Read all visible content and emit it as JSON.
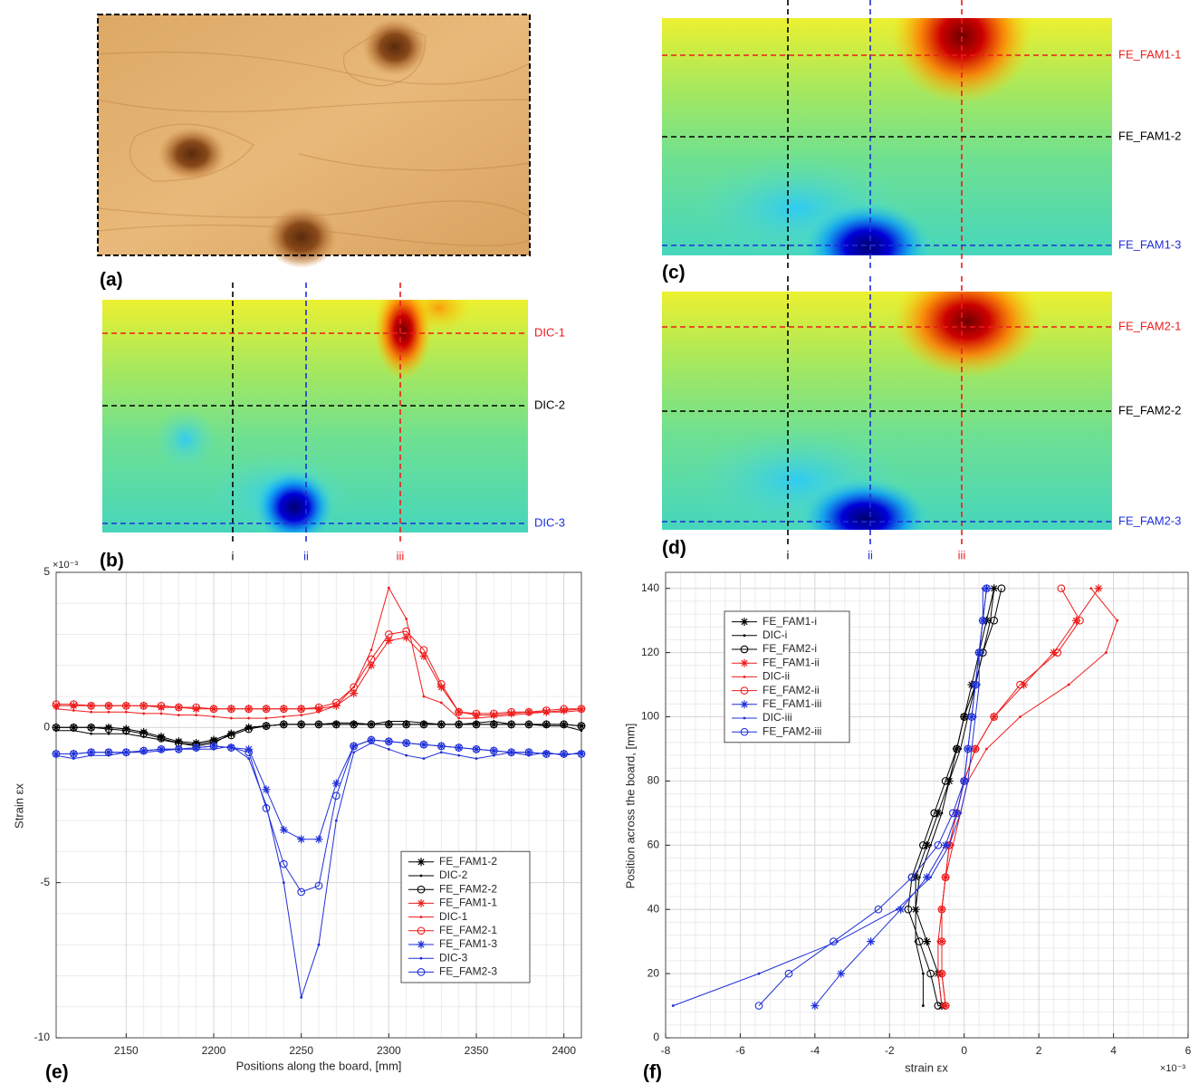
{
  "panel_a": {
    "label": "(a)"
  },
  "heatmaps": [
    {
      "label": "(b)",
      "rows": [
        "DIC-1",
        "DIC-2",
        "DIC-3"
      ],
      "columns": [
        "i",
        "ii",
        "iii"
      ]
    },
    {
      "label": "(c)",
      "rows": [
        "FE_FAM1-1",
        "FE_FAM1-2",
        "FE_FAM1-3"
      ]
    },
    {
      "label": "(d)",
      "rows": [
        "FE_FAM2-1",
        "FE_FAM2-2",
        "FE_FAM2-3"
      ],
      "columns": [
        "i",
        "ii",
        "iii"
      ]
    }
  ],
  "chart_data": [
    {
      "type": "line",
      "label": "(e)",
      "xlabel": "Positions along the board, [mm]",
      "ylabel": "Strain εx",
      "exponent": "×10⁻³",
      "xlim": [
        2110,
        2410
      ],
      "xticks": [
        2150,
        2200,
        2250,
        2300,
        2350,
        2400
      ],
      "ylim": [
        -10,
        5
      ],
      "yticks": [
        -10,
        -5,
        0,
        5
      ],
      "grid": true,
      "minor_grid": true,
      "legend": "lower right",
      "x": [
        2110,
        2120,
        2130,
        2140,
        2150,
        2160,
        2170,
        2180,
        2190,
        2200,
        2210,
        2220,
        2230,
        2240,
        2250,
        2260,
        2270,
        2280,
        2290,
        2300,
        2310,
        2320,
        2330,
        2340,
        2350,
        2360,
        2370,
        2380,
        2390,
        2400,
        2410
      ],
      "series": [
        {
          "name": "FE_FAM1-2",
          "color": "#000000",
          "marker": "asterisk",
          "values": [
            0,
            0,
            0,
            0,
            -0.05,
            -0.15,
            -0.3,
            -0.45,
            -0.5,
            -0.4,
            -0.2,
            0,
            0.05,
            0.1,
            0.1,
            0.1,
            0.1,
            0.1,
            0.1,
            0.1,
            0.1,
            0.1,
            0.1,
            0.1,
            0.1,
            0.1,
            0.1,
            0.1,
            0.1,
            0.1,
            0.05
          ]
        },
        {
          "name": "DIC-2",
          "color": "#000000",
          "marker": "dot",
          "values": [
            -0.1,
            -0.1,
            -0.2,
            -0.2,
            -0.2,
            -0.3,
            -0.4,
            -0.5,
            -0.6,
            -0.5,
            -0.2,
            0,
            0.05,
            0.1,
            0.1,
            0.1,
            0.15,
            0.15,
            0.1,
            0.2,
            0.2,
            0.15,
            0.1,
            0.1,
            0.15,
            0.2,
            0.1,
            0.1,
            0.05,
            0.05,
            -0.1
          ]
        },
        {
          "name": "FE_FAM2-2",
          "color": "#000000",
          "marker": "circle",
          "values": [
            0,
            0,
            0,
            -0.05,
            -0.1,
            -0.2,
            -0.35,
            -0.5,
            -0.55,
            -0.45,
            -0.25,
            -0.05,
            0.05,
            0.1,
            0.1,
            0.1,
            0.1,
            0.1,
            0.1,
            0.1,
            0.1,
            0.1,
            0.1,
            0.1,
            0.1,
            0.1,
            0.1,
            0.1,
            0.1,
            0.1,
            0.05
          ]
        },
        {
          "name": "FE_FAM1-1",
          "color": "#ee1c1c",
          "marker": "asterisk",
          "values": [
            0.7,
            0.7,
            0.7,
            0.7,
            0.7,
            0.7,
            0.65,
            0.65,
            0.6,
            0.6,
            0.6,
            0.6,
            0.6,
            0.6,
            0.6,
            0.6,
            0.7,
            1.1,
            2.0,
            2.8,
            2.9,
            2.3,
            1.3,
            0.5,
            0.4,
            0.4,
            0.45,
            0.5,
            0.5,
            0.55,
            0.6
          ]
        },
        {
          "name": "DIC-1",
          "color": "#ee1c1c",
          "marker": "dot",
          "values": [
            0.6,
            0.55,
            0.5,
            0.5,
            0.5,
            0.45,
            0.45,
            0.4,
            0.4,
            0.35,
            0.3,
            0.3,
            0.3,
            0.35,
            0.4,
            0.5,
            0.7,
            1.3,
            2.5,
            4.5,
            3.5,
            1.0,
            0.8,
            0.3,
            0.3,
            0.35,
            0.4,
            0.45,
            0.5,
            0.5,
            0.55
          ]
        },
        {
          "name": "FE_FAM2-1",
          "color": "#ee1c1c",
          "marker": "circle",
          "values": [
            0.75,
            0.75,
            0.7,
            0.7,
            0.7,
            0.7,
            0.7,
            0.65,
            0.65,
            0.6,
            0.6,
            0.6,
            0.6,
            0.6,
            0.6,
            0.65,
            0.8,
            1.3,
            2.2,
            3.0,
            3.1,
            2.5,
            1.4,
            0.5,
            0.45,
            0.45,
            0.5,
            0.5,
            0.55,
            0.6,
            0.6
          ]
        },
        {
          "name": "FE_FAM1-3",
          "color": "#1f2fd8",
          "marker": "asterisk",
          "values": [
            -0.85,
            -0.85,
            -0.8,
            -0.8,
            -0.8,
            -0.75,
            -0.7,
            -0.7,
            -0.65,
            -0.6,
            -0.65,
            -0.7,
            -2.0,
            -3.3,
            -3.6,
            -3.6,
            -1.8,
            -0.6,
            -0.4,
            -0.45,
            -0.5,
            -0.55,
            -0.6,
            -0.65,
            -0.7,
            -0.75,
            -0.8,
            -0.8,
            -0.85,
            -0.85,
            -0.85
          ]
        },
        {
          "name": "DIC-3",
          "color": "#1f2fd8",
          "marker": "dot",
          "values": [
            -0.9,
            -1.0,
            -0.9,
            -0.9,
            -0.8,
            -0.8,
            -0.75,
            -0.7,
            -0.7,
            -0.7,
            -0.6,
            -1.0,
            -2.5,
            -5.0,
            -8.7,
            -7.0,
            -3.0,
            -0.8,
            -0.5,
            -0.7,
            -0.9,
            -1.0,
            -0.8,
            -0.9,
            -1.0,
            -0.9,
            -0.8,
            -0.9,
            -0.8,
            -0.9,
            -0.8
          ]
        },
        {
          "name": "FE_FAM2-3",
          "color": "#1f2fd8",
          "marker": "circle",
          "values": [
            -0.85,
            -0.85,
            -0.8,
            -0.8,
            -0.8,
            -0.75,
            -0.7,
            -0.7,
            -0.65,
            -0.6,
            -0.65,
            -0.8,
            -2.6,
            -4.4,
            -5.3,
            -5.1,
            -2.2,
            -0.6,
            -0.4,
            -0.45,
            -0.5,
            -0.55,
            -0.6,
            -0.65,
            -0.7,
            -0.75,
            -0.8,
            -0.8,
            -0.85,
            -0.85,
            -0.85
          ]
        }
      ]
    },
    {
      "type": "line",
      "label": "(f)",
      "xlabel": "strain εx",
      "ylabel": "Position across the board, [mm]",
      "exponent": "×10⁻³",
      "xlim": [
        -8,
        6
      ],
      "xticks": [
        -8,
        -6,
        -4,
        -2,
        0,
        2,
        4,
        6
      ],
      "ylim": [
        0,
        145
      ],
      "yticks": [
        0,
        20,
        40,
        60,
        80,
        100,
        120,
        140
      ],
      "grid": true,
      "minor_grid": true,
      "legend": "upper left",
      "y": [
        10,
        20,
        30,
        40,
        50,
        60,
        70,
        80,
        90,
        100,
        110,
        120,
        130,
        140
      ],
      "series": [
        {
          "name": "FE_FAM1-i",
          "color": "#000000",
          "marker": "asterisk",
          "values": [
            -0.6,
            -0.7,
            -1.0,
            -1.3,
            -1.3,
            -1.0,
            -0.7,
            -0.4,
            -0.2,
            0,
            0.2,
            0.4,
            0.6,
            0.8
          ]
        },
        {
          "name": "DIC-i",
          "color": "#000000",
          "marker": "dot",
          "values": [
            -1.1,
            -1.1,
            -1.3,
            -1.3,
            -1.2,
            -0.9,
            -0.6,
            -0.4,
            -0.1,
            0.1,
            0.3,
            0.5,
            0.7,
            0.8
          ]
        },
        {
          "name": "FE_FAM2-i",
          "color": "#000000",
          "marker": "circle",
          "values": [
            -0.7,
            -0.9,
            -1.2,
            -1.5,
            -1.4,
            -1.1,
            -0.8,
            -0.5,
            -0.2,
            0,
            0.3,
            0.5,
            0.8,
            1.0
          ]
        },
        {
          "name": "FE_FAM1-ii",
          "color": "#ee1c1c",
          "marker": "asterisk",
          "values": [
            -0.5,
            -0.6,
            -0.6,
            -0.6,
            -0.5,
            -0.4,
            -0.2,
            0,
            0.3,
            0.8,
            1.6,
            2.4,
            3.0,
            3.6
          ]
        },
        {
          "name": "DIC-ii",
          "color": "#ee1c1c",
          "marker": "dot",
          "values": [
            -0.6,
            -0.7,
            -0.7,
            -0.6,
            -0.5,
            -0.3,
            -0.1,
            0.1,
            0.6,
            1.5,
            2.8,
            3.8,
            4.1,
            3.4
          ]
        },
        {
          "name": "FE_FAM2-ii",
          "color": "#ee1c1c",
          "marker": "circle",
          "values": [
            -0.5,
            -0.6,
            -0.6,
            -0.6,
            -0.5,
            -0.4,
            -0.2,
            0,
            0.3,
            0.8,
            1.5,
            2.5,
            3.1,
            2.6
          ]
        },
        {
          "name": "FE_FAM1-iii",
          "color": "#1f2fd8",
          "marker": "asterisk",
          "values": [
            -4.0,
            -3.3,
            -2.5,
            -1.7,
            -1.0,
            -0.5,
            -0.2,
            0,
            0.1,
            0.2,
            0.3,
            0.4,
            0.5,
            0.6
          ]
        },
        {
          "name": "DIC-iii",
          "color": "#1f2fd8",
          "marker": "dot",
          "values": [
            -7.8,
            -5.5,
            -3.4,
            -1.8,
            -0.9,
            -0.4,
            -0.1,
            0.1,
            0.2,
            0.3,
            0.4,
            0.4,
            0.5,
            0.5
          ]
        },
        {
          "name": "FE_FAM2-iii",
          "color": "#1f2fd8",
          "marker": "circle",
          "values": [
            -5.5,
            -4.7,
            -3.5,
            -2.3,
            -1.4,
            -0.7,
            -0.3,
            0,
            0.1,
            0.2,
            0.3,
            0.4,
            0.5,
            0.6
          ]
        }
      ]
    }
  ]
}
